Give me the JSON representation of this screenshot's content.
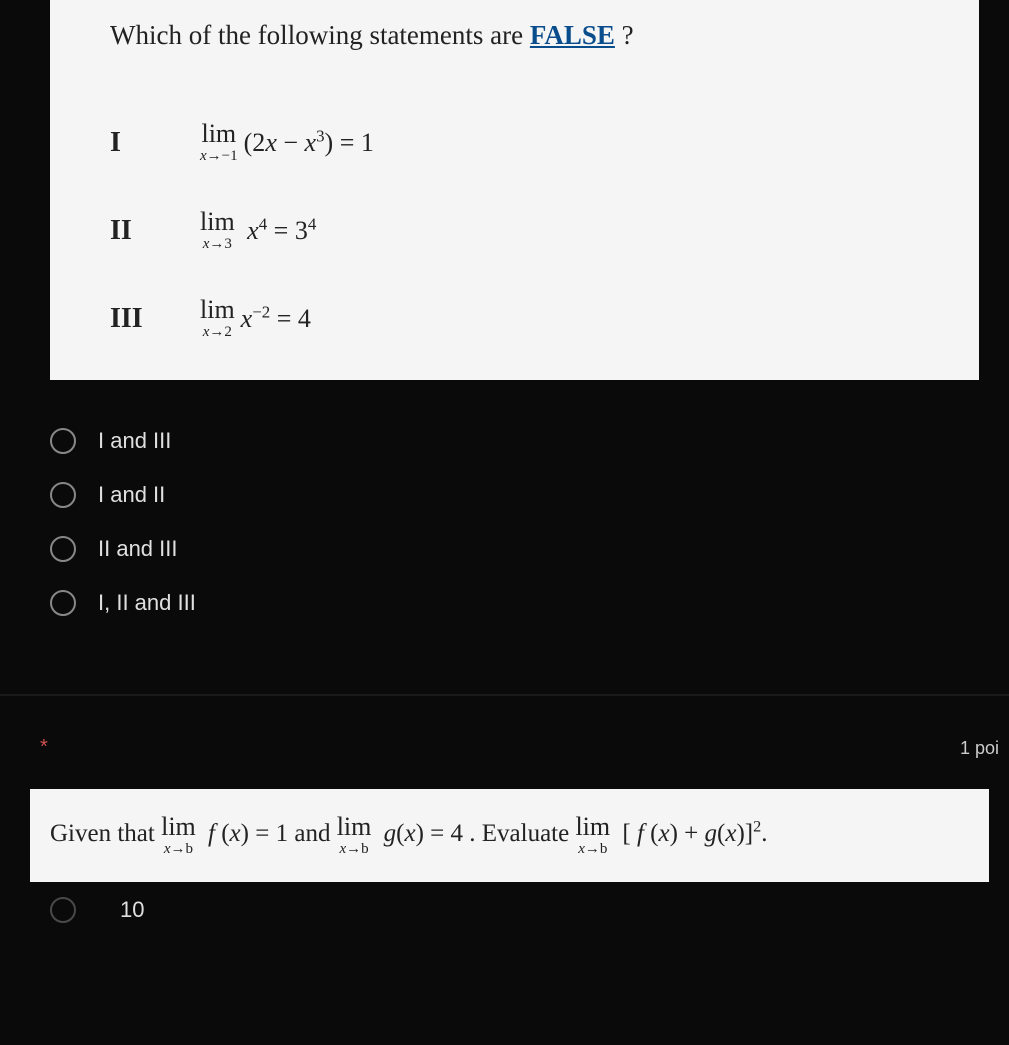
{
  "colors": {
    "page_bg": "#0a0a0a",
    "card_bg": "#f5f5f5",
    "text_dark": "#222222",
    "text_light": "#e0e0e0",
    "accent_link": "#0a4d8c",
    "required": "#d05050",
    "radio_border": "#888888"
  },
  "question1": {
    "prompt_prefix": "Which of the following statements are ",
    "prompt_false": "FALSE",
    "prompt_suffix": " ?",
    "statements": [
      {
        "label": "I",
        "approach": "−1",
        "expr_html": "(2<i>x</i> − <i>x</i><sup>3</sup>) = 1"
      },
      {
        "label": "II",
        "approach": "3",
        "expr_html": "&nbsp;<i>x</i><sup>4</sup> = 3<sup>4</sup>"
      },
      {
        "label": "III",
        "approach": "2",
        "expr_html": "<i>x</i><sup>−2</sup> = 4"
      }
    ],
    "options": [
      "I and III",
      "I and II",
      "II and III",
      "I, II and III"
    ]
  },
  "question2": {
    "required_marker": "*",
    "points_label": "1 poi",
    "text_parts": {
      "t1": "Given that ",
      "lim1_approach": "b",
      "f_eq": " f (x) = 1",
      "t2": " and ",
      "lim2_approach": "b",
      "g_eq": " g (x) = 4",
      "t3": " . Evaluate ",
      "lim3_approach": "b",
      "bracket": "[ f (x) + g (x) ]",
      "power": "2",
      "end": "."
    },
    "first_option": "10"
  }
}
